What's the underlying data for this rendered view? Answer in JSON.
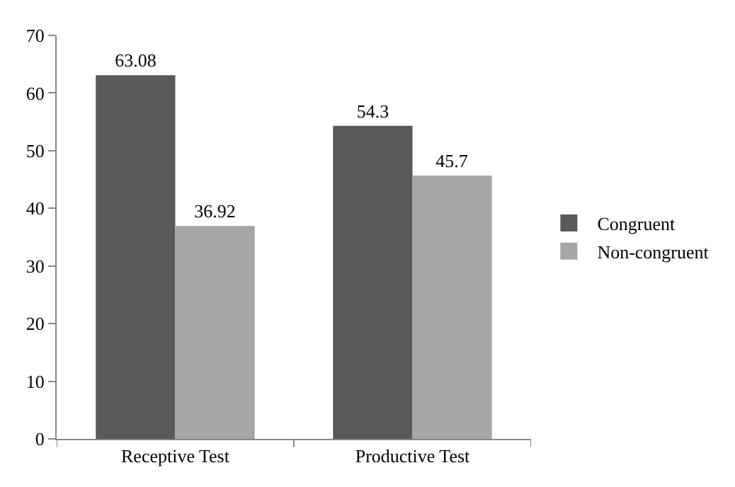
{
  "chart_data": {
    "type": "bar",
    "categories": [
      "Receptive Test",
      "Productive Test"
    ],
    "series": [
      {
        "name": "Congruent",
        "color": "#595959",
        "values": [
          63.08,
          54.3
        ]
      },
      {
        "name": "Non-congruent",
        "color": "#a6a6a6",
        "values": [
          36.92,
          45.7
        ]
      }
    ],
    "ylim": [
      0,
      70
    ],
    "yticks": [
      0,
      10,
      20,
      30,
      40,
      50,
      60,
      70
    ],
    "grid": false,
    "legend": "right",
    "data_labels": true
  }
}
